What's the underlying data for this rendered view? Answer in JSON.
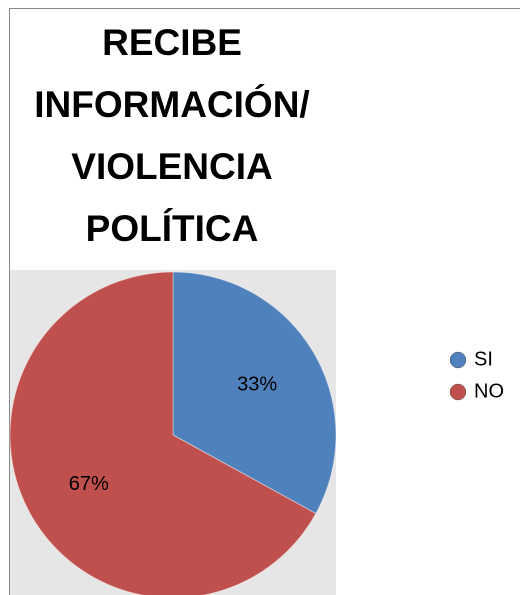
{
  "chart_data": {
    "type": "pie",
    "title": "RECIBE INFORMACIÓN/ VIOLENCIA POLÍTICA",
    "categories": [
      "SI",
      "NO"
    ],
    "values": [
      33,
      67
    ],
    "value_labels": [
      "33%",
      "67%"
    ],
    "colors": [
      "#4f81bd",
      "#c0504d"
    ],
    "legend": "right"
  }
}
